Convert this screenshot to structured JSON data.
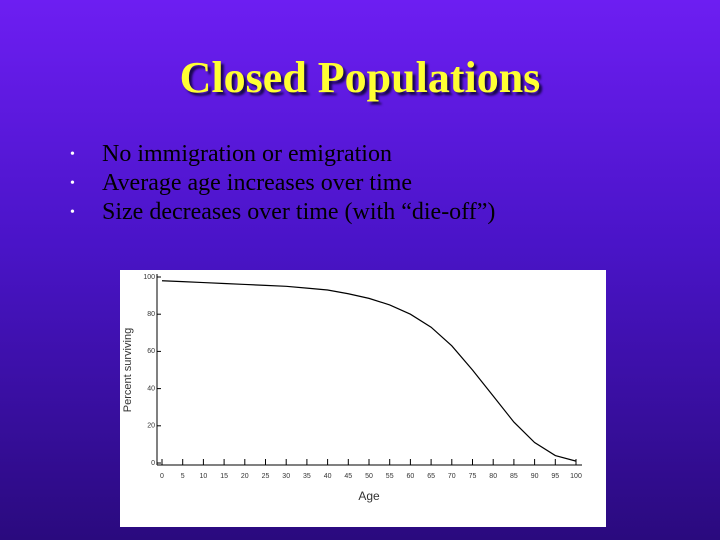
{
  "slide": {
    "title": "Closed Populations",
    "bullets": [
      "No immigration or emigration",
      "Average age increases over time",
      "Size decreases over time (with “die-off”)"
    ]
  },
  "chart_data": {
    "type": "line",
    "x_label": "Age",
    "y_label": "Percent surviving",
    "x": [
      0,
      5,
      10,
      15,
      20,
      25,
      30,
      35,
      40,
      45,
      50,
      55,
      60,
      65,
      70,
      75,
      80,
      85,
      90,
      95,
      100
    ],
    "series": [
      {
        "color": "#000000",
        "values": [
          98,
          97.5,
          97,
          96.5,
          96,
          95.5,
          95,
          94,
          93,
          91,
          88.5,
          85,
          80,
          73,
          63,
          50,
          36,
          22,
          11,
          4,
          1
        ]
      }
    ],
    "xlim": [
      0,
      100
    ],
    "xticks": [
      0,
      5,
      10,
      15,
      20,
      25,
      30,
      35,
      40,
      45,
      50,
      55,
      60,
      65,
      70,
      75,
      80,
      85,
      90,
      95,
      100
    ],
    "ylim": [
      0,
      100
    ],
    "yticks": [
      0,
      20,
      40,
      60,
      80,
      100
    ]
  }
}
